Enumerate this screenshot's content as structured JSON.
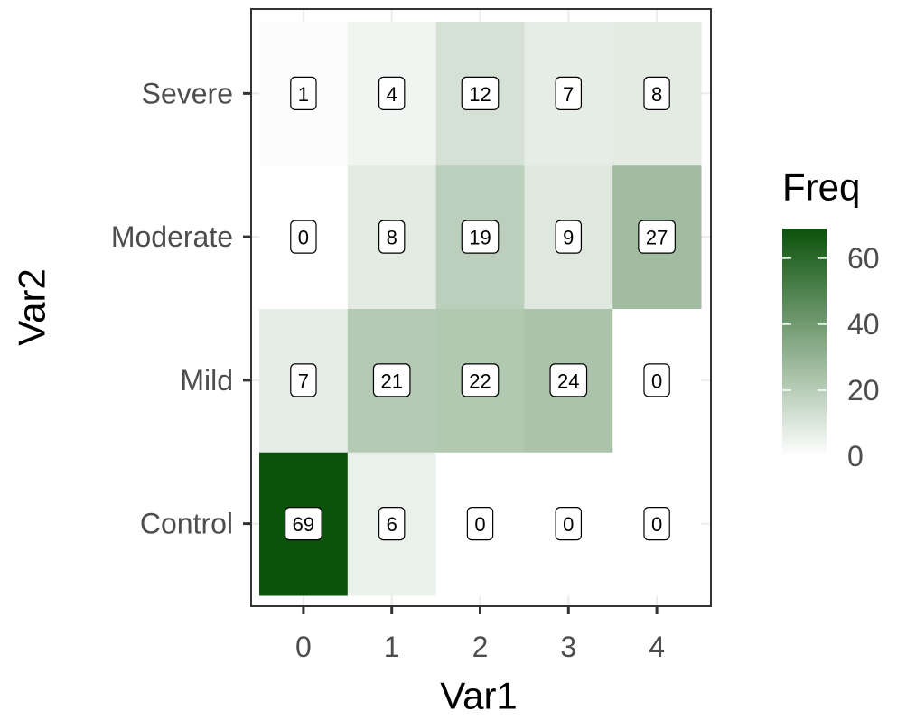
{
  "chart_data": {
    "type": "heatmap",
    "x_label": "Var1",
    "y_label": "Var2",
    "x_categories": [
      "0",
      "1",
      "2",
      "3",
      "4"
    ],
    "y_categories": [
      "Control",
      "Mild",
      "Moderate",
      "Severe"
    ],
    "values": [
      [
        69,
        6,
        0,
        0,
        0
      ],
      [
        7,
        21,
        22,
        24,
        0
      ],
      [
        0,
        8,
        19,
        9,
        27
      ],
      [
        1,
        4,
        12,
        7,
        8
      ]
    ],
    "colorbar": {
      "title": "Freq",
      "lim": [
        0,
        69
      ],
      "ticks": [
        0,
        20,
        40,
        60
      ],
      "low": "#ffffff",
      "high": "#0b520b"
    },
    "grid": true
  }
}
